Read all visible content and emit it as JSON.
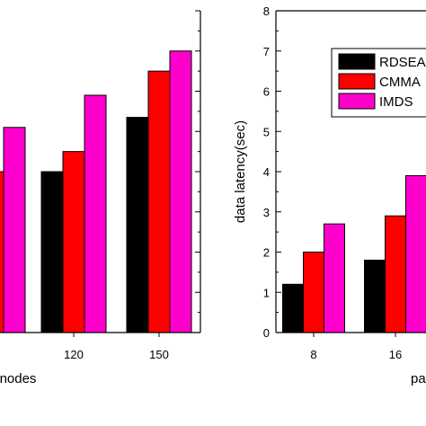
{
  "chart_data": [
    {
      "type": "bar",
      "categories": [
        "",
        "120",
        "150"
      ],
      "series": [
        {
          "name": "RDSEA",
          "color": "#000000",
          "values": [
            null,
            4.0,
            5.35
          ]
        },
        {
          "name": "CMMA",
          "color": "#ff0000",
          "values": [
            4.0,
            4.5,
            6.5
          ]
        },
        {
          "name": "IMDS",
          "color": "#ff00cc",
          "values": [
            5.1,
            5.9,
            7.0
          ]
        }
      ],
      "xlabel": "nodes",
      "ylabel": "",
      "ylim": [
        0,
        8
      ],
      "grid": false,
      "legend": "none"
    },
    {
      "type": "bar",
      "categories": [
        "8",
        "16",
        ""
      ],
      "series": [
        {
          "name": "RDSEA",
          "color": "#000000",
          "values": [
            1.2,
            1.8,
            null
          ]
        },
        {
          "name": "CMMA",
          "color": "#ff0000",
          "values": [
            2.0,
            2.9,
            null
          ]
        },
        {
          "name": "IMDS",
          "color": "#ff00cc",
          "values": [
            2.7,
            3.9,
            null
          ]
        }
      ],
      "xlabel": "pa",
      "ylabel": "data latency(sec)",
      "ylim": [
        0,
        8
      ],
      "yticks": [
        "0",
        "1",
        "2",
        "3",
        "4",
        "5",
        "6",
        "7",
        "8"
      ],
      "grid": false,
      "legend": "top-right",
      "legend_labels": [
        "RDSEA",
        "CMMA",
        "IMDS"
      ]
    }
  ]
}
